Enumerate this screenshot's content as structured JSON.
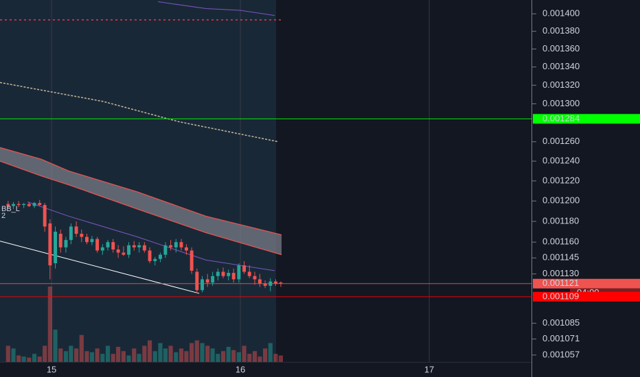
{
  "chart_data": {
    "type": "candlestick",
    "log": true,
    "grid": true,
    "background": "#131722",
    "up_color": "#26a69a",
    "down_color": "#ef5350",
    "xlim": [
      14.727,
      17.538
    ],
    "ylim": [
      0.001051,
      0.001416
    ],
    "xticks": [
      15,
      16,
      17
    ],
    "yticks": [
      {
        "value": 0.0014,
        "label": "0.001400"
      },
      {
        "value": 0.00138,
        "label": "0.001380"
      },
      {
        "value": 0.00136,
        "label": "0.001360"
      },
      {
        "value": 0.00134,
        "label": "0.001340"
      },
      {
        "value": 0.00132,
        "label": "0.001320"
      },
      {
        "value": 0.0013,
        "label": "0.001300"
      },
      {
        "value": 0.00126,
        "label": "0.001260"
      },
      {
        "value": 0.00124,
        "label": "0.001240"
      },
      {
        "value": 0.00122,
        "label": "0.001220"
      },
      {
        "value": 0.0012,
        "label": "0.001200"
      },
      {
        "value": 0.00118,
        "label": "0.001180"
      },
      {
        "value": 0.00116,
        "label": "0.001160"
      },
      {
        "value": 0.001145,
        "label": "0.001145"
      },
      {
        "value": 0.00113,
        "label": "0.001130"
      },
      {
        "value": 0.001085,
        "label": "0.001085"
      },
      {
        "value": 0.001071,
        "label": "0.001071"
      },
      {
        "value": 0.001057,
        "label": "0.001057"
      }
    ],
    "x": [
      14.77,
      14.798,
      14.826,
      14.853,
      14.881,
      14.909,
      14.937,
      14.964,
      14.992,
      15.02,
      15.048,
      15.076,
      15.103,
      15.131,
      15.159,
      15.187,
      15.214,
      15.242,
      15.27,
      15.298,
      15.326,
      15.353,
      15.381,
      15.409,
      15.437,
      15.464,
      15.492,
      15.52,
      15.548,
      15.576,
      15.603,
      15.631,
      15.659,
      15.687,
      15.714,
      15.742,
      15.77,
      15.798,
      15.826,
      15.853,
      15.881,
      15.909,
      15.937,
      15.964,
      15.992,
      16.02,
      16.048,
      16.076,
      16.103,
      16.131,
      16.159,
      16.187,
      16.214
    ],
    "open": [
      0.001197,
      0.001195,
      0.001197,
      0.001196,
      0.001197,
      0.001195,
      0.001198,
      0.001196,
      0.001178,
      0.00114,
      0.001168,
      0.001155,
      0.001162,
      0.001175,
      0.001168,
      0.001165,
      0.00116,
      0.001163,
      0.001152,
      0.001155,
      0.00116,
      0.001153,
      0.00115,
      0.001148,
      0.001157,
      0.001155,
      0.001157,
      0.001152,
      0.001142,
      0.001144,
      0.001148,
      0.001157,
      0.001155,
      0.00116,
      0.001155,
      0.001152,
      0.001132,
      0.001115,
      0.001125,
      0.001122,
      0.001128,
      0.001132,
      0.001128,
      0.001131,
      0.001125,
      0.001138,
      0.001132,
      0.001128,
      0.001125,
      0.001121,
      0.001119,
      0.001123,
      0.001122
    ],
    "high": [
      0.0012,
      0.001199,
      0.0012,
      0.001198,
      0.001199,
      0.001199,
      0.001201,
      0.001198,
      0.001182,
      0.001175,
      0.001172,
      0.001165,
      0.001178,
      0.00118,
      0.001172,
      0.001168,
      0.001166,
      0.001165,
      0.001158,
      0.001162,
      0.001163,
      0.001157,
      0.001156,
      0.00116,
      0.001161,
      0.00116,
      0.00116,
      0.001155,
      0.001146,
      0.00115,
      0.00116,
      0.001162,
      0.001163,
      0.001163,
      0.001158,
      0.001155,
      0.001135,
      0.001128,
      0.00113,
      0.001132,
      0.001135,
      0.001136,
      0.001134,
      0.001135,
      0.00114,
      0.001142,
      0.001138,
      0.001132,
      0.00113,
      0.001124,
      0.001126,
      0.001125,
      0.001123
    ],
    "low": [
      0.001193,
      0.001192,
      0.001194,
      0.001193,
      0.001194,
      0.001193,
      0.001195,
      0.00117,
      0.001125,
      0.001135,
      0.00115,
      0.00115,
      0.001158,
      0.001165,
      0.00116,
      0.001158,
      0.001157,
      0.00115,
      0.001148,
      0.001152,
      0.00115,
      0.001145,
      0.001147,
      0.001145,
      0.001152,
      0.00115,
      0.00115,
      0.00114,
      0.001138,
      0.001141,
      0.001145,
      0.001152,
      0.00115,
      0.001152,
      0.001148,
      0.00113,
      0.001112,
      0.001113,
      0.001118,
      0.001119,
      0.001124,
      0.001126,
      0.001124,
      0.001122,
      0.001122,
      0.00113,
      0.001126,
      0.00112,
      0.001118,
      0.001117,
      0.001114,
      0.001119,
      0.001118
    ],
    "close": [
      0.001195,
      0.001197,
      0.001196,
      0.001197,
      0.001195,
      0.001198,
      0.001196,
      0.001175,
      0.001138,
      0.00117,
      0.001155,
      0.001162,
      0.001175,
      0.001168,
      0.001165,
      0.00116,
      0.001163,
      0.001152,
      0.001155,
      0.00116,
      0.001153,
      0.00115,
      0.001148,
      0.001157,
      0.001155,
      0.001157,
      0.001152,
      0.001142,
      0.001144,
      0.001148,
      0.001157,
      0.001155,
      0.00116,
      0.001155,
      0.001152,
      0.001133,
      0.001115,
      0.001125,
      0.001122,
      0.001128,
      0.001132,
      0.001128,
      0.001131,
      0.001125,
      0.001138,
      0.001132,
      0.001128,
      0.001125,
      0.001121,
      0.001119,
      0.001123,
      0.001121,
      0.001121
    ],
    "volume": [
      30,
      25,
      12,
      10,
      8,
      15,
      10,
      30,
      140,
      60,
      25,
      20,
      30,
      25,
      50,
      20,
      18,
      25,
      15,
      30,
      15,
      28,
      20,
      12,
      25,
      15,
      30,
      40,
      20,
      35,
      25,
      30,
      18,
      25,
      20,
      35,
      40,
      35,
      30,
      25,
      15,
      20,
      28,
      22,
      18,
      30,
      15,
      20,
      10,
      25,
      35,
      15,
      12
    ],
    "band": {
      "line_color": "#ef5350",
      "fill": "#787b86",
      "x": [
        14.727,
        14.945,
        15.091,
        15.455,
        15.818,
        16.218
      ],
      "upper": [
        0.001254,
        0.001242,
        0.00123,
        0.001209,
        0.001185,
        0.001167
      ],
      "lower": [
        0.00124,
        0.001225,
        0.001216,
        0.001192,
        0.001169,
        0.001148
      ]
    },
    "lines": [
      {
        "color": "#7e57c2",
        "style": "solid",
        "x": [
          15.564,
          15.818,
          16.0,
          16.182
        ],
        "values": [
          0.001414,
          0.001406,
          0.001404,
          0.001398
        ]
      },
      {
        "color": "#c8b89a",
        "style": "dashed",
        "x": [
          14.727,
          15.273,
          15.673,
          16.2
        ],
        "values": [
          0.001323,
          0.0013025,
          0.001281,
          0.00126
        ]
      },
      {
        "color": "#7e57c2",
        "style": "solid",
        "x": [
          14.873,
          15.091,
          15.455,
          15.818,
          16.182
        ],
        "values": [
          0.001199,
          0.001185,
          0.001165,
          0.001143,
          0.001133
        ]
      },
      {
        "color": "#ffffff",
        "style": "solid",
        "x": [
          14.727,
          15.782
        ],
        "values": [
          0.001161,
          0.001112
        ]
      },
      {
        "color": "#f23645",
        "style": "dotted",
        "x": [
          14.727,
          16.222
        ],
        "values": [
          0.001393,
          0.001393
        ]
      }
    ],
    "price_lines": [
      {
        "value": 0.001284,
        "label": "0.001284",
        "color": "#00ff00",
        "text_color": "#000000"
      },
      {
        "value": 0.001121,
        "label": "0.001121",
        "color": "#ef5350",
        "text_color": "#ffffff",
        "countdown": "04:00"
      },
      {
        "value": 0.001109,
        "label": "0.001109",
        "color": "#ff0000",
        "text_color": "#ffffff"
      }
    ],
    "legend_texts": [
      "BB_L",
      "2"
    ],
    "legend_color": "#26a69a"
  }
}
